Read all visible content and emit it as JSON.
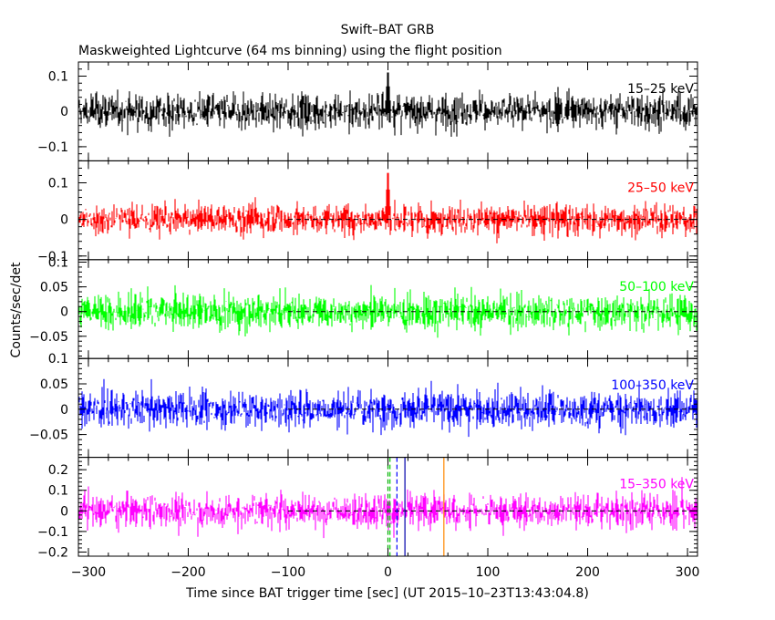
{
  "chart_data": {
    "type": "line",
    "title": "Swift–BAT GRB",
    "subtitle": "Maskweighted Lightcurve (64 ms binning) using the flight position",
    "xlabel": "Time since BAT trigger time [sec] (UT 2015–10–23T13:43:04.8)",
    "ylabel": "Counts/sec/det",
    "xlim": [
      -310,
      310
    ],
    "x_ticks": [
      -300,
      -200,
      -100,
      0,
      100,
      200,
      300
    ],
    "x_tick_labels": [
      "−300",
      "−200",
      "−100",
      "0",
      "100",
      "200",
      "300"
    ],
    "binning_sec": 0.064,
    "panels": [
      {
        "name": "15–25 keV",
        "color": "#000000",
        "ylim": [
          -0.14,
          0.14
        ],
        "y_ticks": [
          0.1,
          0,
          -0.1
        ],
        "y_tick_labels": [
          "0.1",
          "0",
          "−0.1"
        ],
        "noise_amplitude": 0.038,
        "peak": {
          "x": 0,
          "value": 0.13
        },
        "zero_line_from_x": null
      },
      {
        "name": "25–50 keV",
        "color": "#ff0000",
        "ylim": [
          -0.11,
          0.16
        ],
        "y_ticks": [
          0.1,
          0,
          -0.1
        ],
        "y_tick_labels": [
          "0.1",
          "0",
          "−0.1"
        ],
        "noise_amplitude": 0.032,
        "peak": {
          "x": 0,
          "value": 0.15
        },
        "zero_line_from_x": -100
      },
      {
        "name": "50–100 keV",
        "color": "#00ff00",
        "ylim": [
          -0.095,
          0.105
        ],
        "y_ticks": [
          0.1,
          0.05,
          0,
          -0.05
        ],
        "y_tick_labels": [
          "0.1",
          "0.05",
          "0",
          "−0.05"
        ],
        "noise_amplitude": 0.028,
        "peak": null,
        "zero_line_from_x": -100
      },
      {
        "name": "100–350 keV",
        "color": "#0000ff",
        "ylim": [
          -0.095,
          0.1
        ],
        "y_ticks": [
          0.1,
          0.05,
          0,
          -0.05
        ],
        "y_tick_labels": [
          "0.1",
          "0.05",
          "0",
          "−0.05"
        ],
        "noise_amplitude": 0.028,
        "peak": null,
        "zero_line_from_x": -100
      },
      {
        "name": "15–350 keV",
        "color": "#ff00ff",
        "ylim": [
          -0.22,
          0.26
        ],
        "y_ticks": [
          0.2,
          0.1,
          0,
          -0.1,
          -0.2
        ],
        "y_tick_labels": [
          "0.2",
          "0.1",
          "0",
          "−0.1",
          "−0.2"
        ],
        "noise_amplitude": 0.065,
        "peak": null,
        "zero_line_from_x": -100
      }
    ],
    "markers": [
      {
        "x": 0,
        "color": "#00aa00",
        "style": "dashed"
      },
      {
        "x": 2,
        "color": "#00cc00",
        "style": "dashed"
      },
      {
        "x": 9,
        "color": "#0000ff",
        "style": "dashed"
      },
      {
        "x": 17,
        "color": "#0000aa",
        "style": "solid"
      },
      {
        "x": 56,
        "color": "#ff8800",
        "style": "solid"
      }
    ]
  }
}
